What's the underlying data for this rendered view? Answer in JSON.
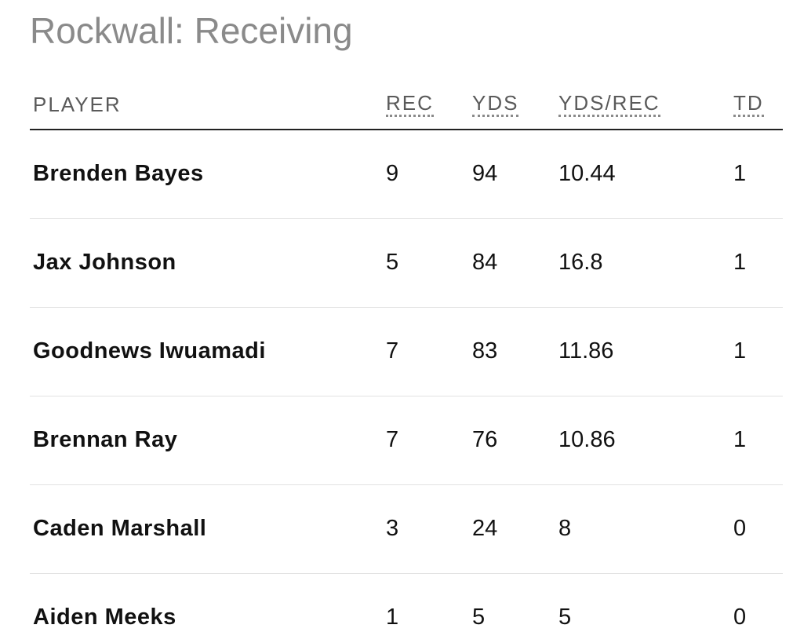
{
  "title": "Rockwall: Receiving",
  "table": {
    "headers": [
      "PLAYER",
      "REC",
      "YDS",
      "YDS/REC",
      "TD"
    ],
    "rows": [
      [
        "Brenden Bayes",
        "9",
        "94",
        "10.44",
        "1"
      ],
      [
        "Jax Johnson",
        "5",
        "84",
        "16.8",
        "1"
      ],
      [
        "Goodnews Iwuamadi",
        "7",
        "83",
        "11.86",
        "1"
      ],
      [
        "Brennan Ray",
        "7",
        "76",
        "10.86",
        "1"
      ],
      [
        "Caden Marshall",
        "3",
        "24",
        "8",
        "0"
      ],
      [
        "Aiden Meeks",
        "1",
        "5",
        "5",
        "0"
      ]
    ]
  }
}
